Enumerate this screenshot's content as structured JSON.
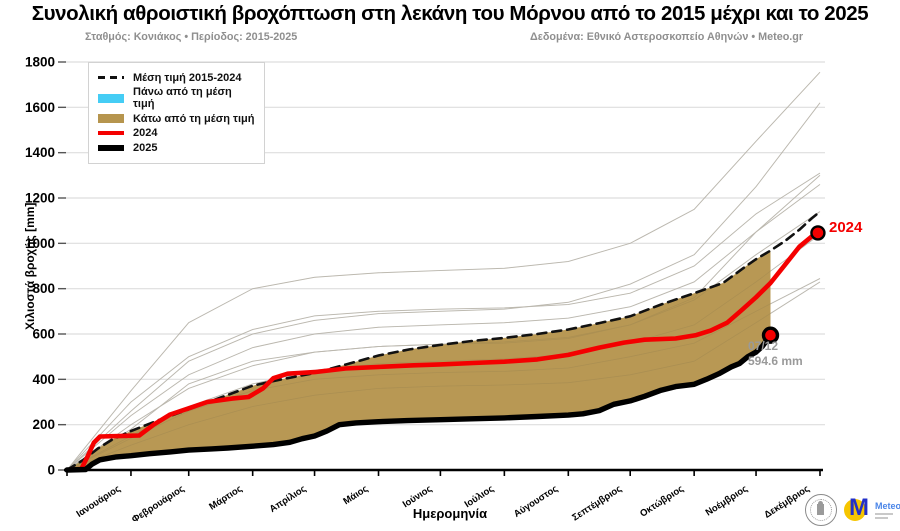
{
  "header": {
    "title": "Συνολική αθροιστική βροχόπτωση στη λεκάνη του Μόρνου από το 2015 μέχρι και το 2025",
    "station_line": "Σταθμός: Κονιάκος • Περίοδος: 2015-2025",
    "source_line": "Δεδομένα: Εθνικό Αστεροσκοπείο Αθηνών • Meteo.gr"
  },
  "legend": {
    "items": [
      {
        "label": "Μέση τιμή 2015-2024",
        "swatch": "dashed-line",
        "color": "#111111"
      },
      {
        "label": "Πάνω από τη μέση τιμή",
        "swatch": "patch",
        "color": "#45cdf5"
      },
      {
        "label": "Κάτω από τη μέση τιμή",
        "swatch": "patch",
        "color": "#b6954e"
      },
      {
        "label": "2024",
        "swatch": "line-red",
        "color": "#f40000"
      },
      {
        "label": "2025",
        "swatch": "line-black",
        "color": "#000000"
      }
    ]
  },
  "annotations": {
    "year_label": "2024",
    "end_date": "07/12",
    "end_value": "594.6 mm"
  },
  "footer": {
    "meteo_label": "Meteo"
  },
  "colors": {
    "red": "#f40000",
    "black": "#000000",
    "fill_below": "#b6954e",
    "above_mean": "#45cdf5",
    "background_lines": "#c4c4c4",
    "gridline": "#dedede",
    "subtitle_gray": "#8f8f8f",
    "annotation_gray": "#9a9a9a"
  },
  "chart_data": {
    "type": "line",
    "title": "Συνολική αθροιστική βροχόπτωση στη λεκάνη του Μόρνου από το 2015 μέχρι και το 2025",
    "xlabel": "Ημερομηνία",
    "ylabel": "Χιλιοστά βροχής [mm]",
    "ylim": [
      0,
      1800
    ],
    "xlim_days": [
      0,
      365
    ],
    "grid": true,
    "legend_position": "upper-left",
    "y_ticks": [
      0,
      200,
      400,
      600,
      800,
      1000,
      1200,
      1400,
      1600,
      1800
    ],
    "x_tick_days": [
      0,
      31,
      59,
      90,
      120,
      151,
      181,
      212,
      243,
      273,
      304,
      334,
      365
    ],
    "month_labels": [
      "Ιανουάριος",
      "Φεβρουάριος",
      "Μάρτιος",
      "Απρίλιος",
      "Μάιος",
      "Ιούνιος",
      "Ιούλιος",
      "Αύγουστος",
      "Σεπτέμβριος",
      "Οκτώβριος",
      "Νοέμβριος",
      "Δεκέμβριος"
    ],
    "series": [
      {
        "name": "Μέση τιμή 2015-2024",
        "style": "dashed",
        "color": "#111111",
        "width": 2.6,
        "points": [
          [
            0,
            0
          ],
          [
            8,
            45
          ],
          [
            15,
            95
          ],
          [
            22,
            135
          ],
          [
            31,
            172
          ],
          [
            45,
            222
          ],
          [
            59,
            268
          ],
          [
            74,
            318
          ],
          [
            90,
            372
          ],
          [
            104,
            400
          ],
          [
            120,
            428
          ],
          [
            135,
            465
          ],
          [
            151,
            505
          ],
          [
            166,
            532
          ],
          [
            181,
            552
          ],
          [
            197,
            570
          ],
          [
            212,
            583
          ],
          [
            228,
            600
          ],
          [
            243,
            620
          ],
          [
            258,
            648
          ],
          [
            273,
            678
          ],
          [
            288,
            730
          ],
          [
            304,
            780
          ],
          [
            318,
            825
          ],
          [
            330,
            905
          ],
          [
            334,
            930
          ],
          [
            341,
            968
          ],
          [
            348,
            1010
          ],
          [
            355,
            1060
          ],
          [
            361,
            1110
          ],
          [
            365,
            1140
          ]
        ]
      },
      {
        "name": "2024",
        "style": "solid",
        "color": "#f40000",
        "width": 4.6,
        "end_marker": true,
        "points": [
          [
            0,
            0
          ],
          [
            7,
            5
          ],
          [
            10,
            60
          ],
          [
            13,
            120
          ],
          [
            16,
            148
          ],
          [
            35,
            152
          ],
          [
            42,
            200
          ],
          [
            50,
            245
          ],
          [
            59,
            272
          ],
          [
            68,
            300
          ],
          [
            80,
            315
          ],
          [
            88,
            322
          ],
          [
            95,
            360
          ],
          [
            100,
            405
          ],
          [
            107,
            425
          ],
          [
            120,
            432
          ],
          [
            135,
            448
          ],
          [
            151,
            455
          ],
          [
            168,
            462
          ],
          [
            181,
            466
          ],
          [
            197,
            472
          ],
          [
            212,
            478
          ],
          [
            228,
            488
          ],
          [
            243,
            508
          ],
          [
            258,
            540
          ],
          [
            270,
            562
          ],
          [
            280,
            575
          ],
          [
            295,
            580
          ],
          [
            305,
            595
          ],
          [
            312,
            615
          ],
          [
            320,
            650
          ],
          [
            327,
            705
          ],
          [
            334,
            762
          ],
          [
            341,
            825
          ],
          [
            348,
            905
          ],
          [
            355,
            985
          ],
          [
            361,
            1030
          ],
          [
            364,
            1046
          ]
        ]
      },
      {
        "name": "2025",
        "style": "solid",
        "color": "#000000",
        "width": 5.4,
        "end_marker": true,
        "end_annotation": {
          "date": "07/12",
          "value_mm": 594.6
        },
        "points": [
          [
            0,
            0
          ],
          [
            9,
            2
          ],
          [
            12,
            25
          ],
          [
            16,
            45
          ],
          [
            24,
            58
          ],
          [
            31,
            63
          ],
          [
            40,
            72
          ],
          [
            50,
            80
          ],
          [
            59,
            88
          ],
          [
            70,
            93
          ],
          [
            78,
            97
          ],
          [
            90,
            105
          ],
          [
            100,
            112
          ],
          [
            108,
            122
          ],
          [
            114,
            138
          ],
          [
            120,
            150
          ],
          [
            126,
            172
          ],
          [
            132,
            200
          ],
          [
            140,
            208
          ],
          [
            151,
            213
          ],
          [
            165,
            218
          ],
          [
            181,
            222
          ],
          [
            196,
            226
          ],
          [
            212,
            230
          ],
          [
            228,
            236
          ],
          [
            243,
            242
          ],
          [
            250,
            248
          ],
          [
            258,
            262
          ],
          [
            265,
            290
          ],
          [
            273,
            305
          ],
          [
            280,
            325
          ],
          [
            288,
            352
          ],
          [
            295,
            368
          ],
          [
            304,
            378
          ],
          [
            310,
            400
          ],
          [
            316,
            425
          ],
          [
            322,
            455
          ],
          [
            326,
            470
          ],
          [
            330,
            500
          ],
          [
            334,
            520
          ],
          [
            337,
            545
          ],
          [
            339,
            570
          ],
          [
            341,
            594.6
          ]
        ]
      }
    ],
    "fill_below_mean": {
      "color": "#b6954e",
      "between": [
        "Μέση τιμή 2015-2024",
        "2025"
      ],
      "end_day": 341
    },
    "background_years": {
      "days": [
        0,
        31,
        59,
        90,
        120,
        151,
        181,
        212,
        243,
        273,
        304,
        334,
        365
      ],
      "series": [
        [
          0,
          110,
          200,
          280,
          330,
          360,
          370,
          375,
          385,
          420,
          480,
          650,
          830
        ],
        [
          0,
          140,
          260,
          350,
          400,
          420,
          430,
          435,
          450,
          500,
          560,
          700,
          845
        ],
        [
          0,
          180,
          380,
          480,
          520,
          545,
          555,
          560,
          580,
          640,
          760,
          1050,
          1300
        ],
        [
          0,
          240,
          420,
          540,
          600,
          630,
          640,
          650,
          670,
          720,
          830,
          1050,
          1260
        ],
        [
          0,
          300,
          500,
          620,
          680,
          700,
          710,
          715,
          730,
          780,
          900,
          1130,
          1310
        ],
        [
          0,
          150,
          280,
          380,
          440,
          470,
          480,
          490,
          510,
          560,
          640,
          830,
          1040
        ],
        [
          0,
          350,
          650,
          800,
          850,
          870,
          880,
          890,
          920,
          1000,
          1150,
          1450,
          1755
        ],
        [
          0,
          260,
          480,
          600,
          660,
          690,
          700,
          710,
          740,
          820,
          950,
          1250,
          1620
        ],
        [
          0,
          200,
          360,
          460,
          520,
          545,
          555,
          565,
          585,
          640,
          750,
          950,
          1140
        ]
      ]
    }
  }
}
